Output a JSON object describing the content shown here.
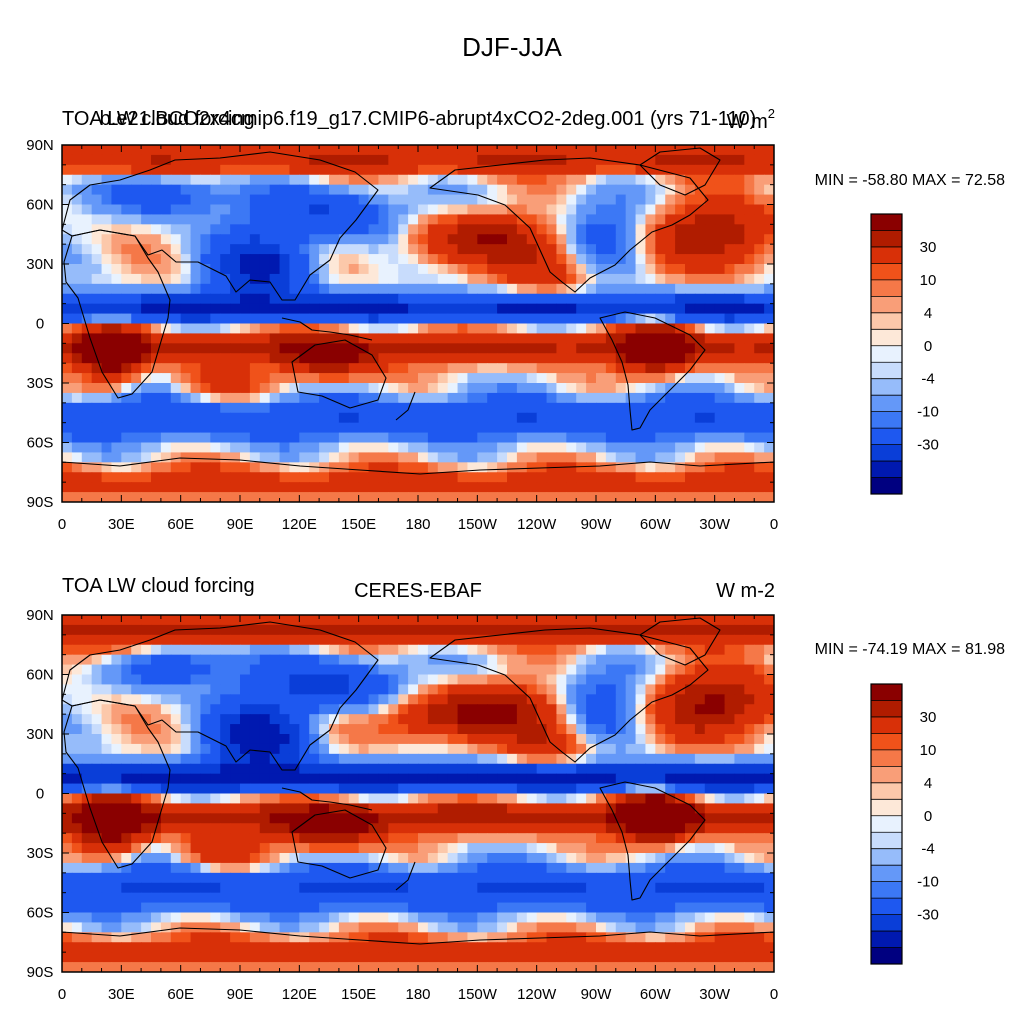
{
  "figure": {
    "title": "DJF-JJA"
  },
  "colors": {
    "levels": [
      "#000080",
      "#0019b0",
      "#0a3ed8",
      "#1e58f0",
      "#3c78f5",
      "#6498f8",
      "#96bcfa",
      "#c8dcfc",
      "#e8f2fe",
      "#fde8d8",
      "#fcc8aa",
      "#f99e78",
      "#f57848",
      "#f0521a",
      "#d83008",
      "#b01c00",
      "#8a0000"
    ],
    "land_outline": "#000000",
    "sea_background": "#ffffff"
  },
  "chart_data": [
    {
      "type": "heatmap",
      "panel": "top",
      "title_left": "TOA LW cloud forcing",
      "title_center": "b.e21.BCO2x4cmip6.f19_g17.CMIP6-abrupt4xCO2-2deg.001 (yrs 71-110)",
      "title_right_unit": "W m",
      "title_right_exp": "2",
      "stats": "MIN = -58.80 MAX =  72.58",
      "min": -58.8,
      "max": 72.58,
      "x_ticks": [
        "0",
        "30E",
        "60E",
        "90E",
        "120E",
        "150E",
        "180",
        "150W",
        "120W",
        "90W",
        "60W",
        "30W",
        "0"
      ],
      "y_ticks": [
        "90N",
        "60N",
        "30N",
        "0",
        "30S",
        "60S",
        "90S"
      ],
      "xlim": [
        0,
        360
      ],
      "ylim": [
        -90,
        90
      ],
      "colorbar_labels": [
        "30",
        "10",
        "4",
        "0",
        "-4",
        "-10",
        "-30"
      ]
    },
    {
      "type": "heatmap",
      "panel": "bottom",
      "title_left": "TOA LW cloud forcing",
      "title_center": "CERES-EBAF",
      "title_right_unit": "W m-2",
      "title_right_exp": "",
      "stats": "MIN = -74.19 MAX =  81.98",
      "min": -74.19,
      "max": 81.98,
      "x_ticks": [
        "0",
        "30E",
        "60E",
        "90E",
        "120E",
        "150E",
        "180",
        "150W",
        "120W",
        "90W",
        "60W",
        "30W",
        "0"
      ],
      "y_ticks": [
        "90N",
        "60N",
        "30N",
        "0",
        "30S",
        "60S",
        "90S"
      ],
      "xlim": [
        0,
        360
      ],
      "ylim": [
        -90,
        90
      ],
      "colorbar_labels": [
        "30",
        "10",
        "4",
        "0",
        "-4",
        "-10",
        "-30"
      ]
    }
  ]
}
